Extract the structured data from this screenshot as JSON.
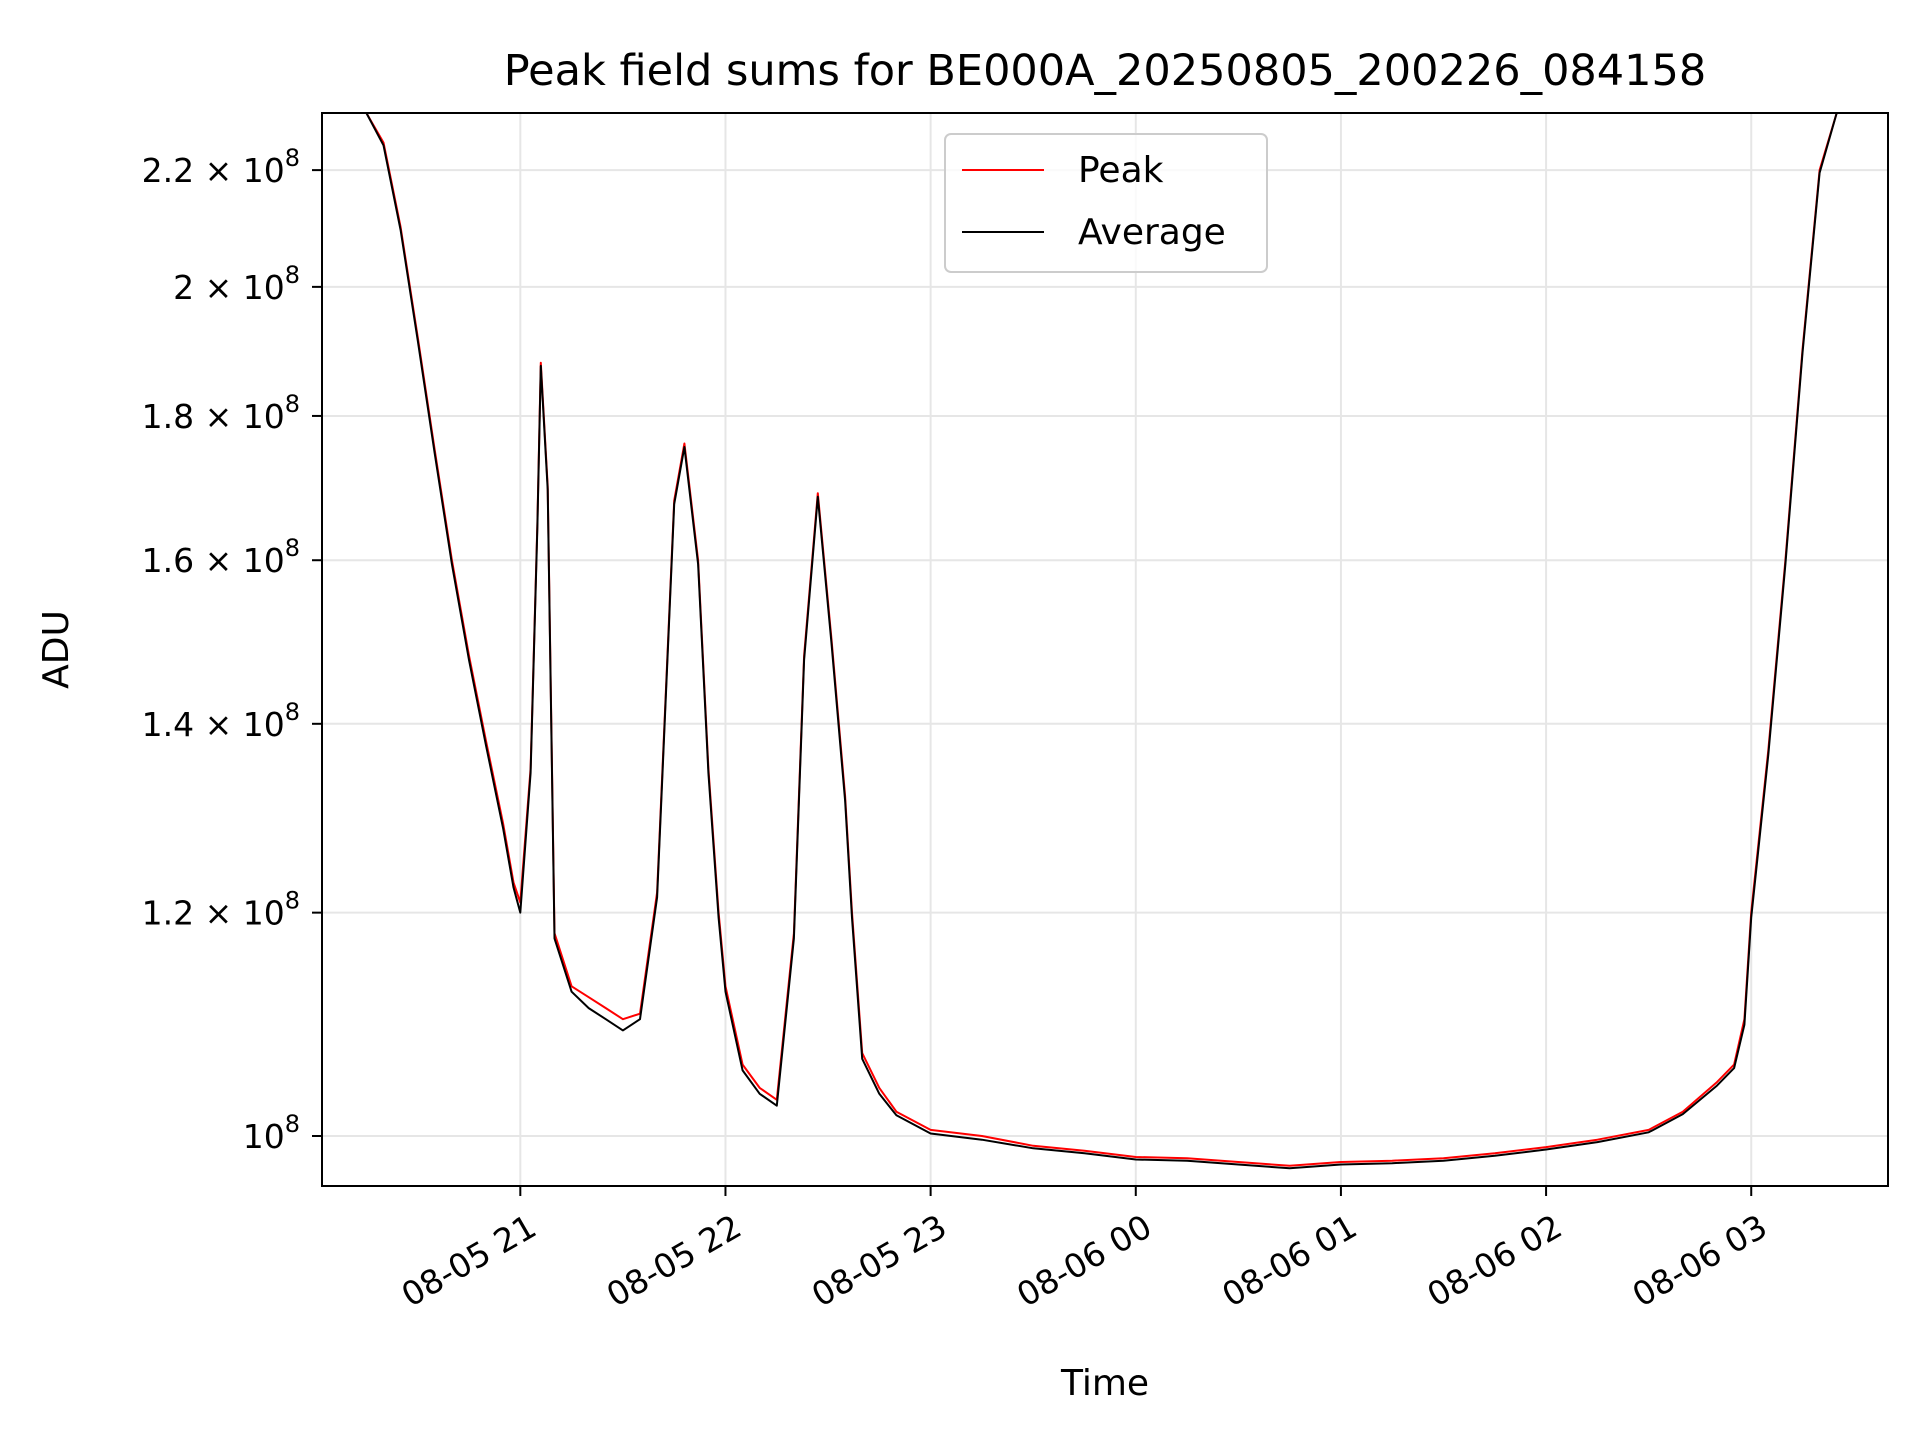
{
  "chart_data": {
    "type": "line",
    "title": "Peak field sums for BE000A_20250805_200226_084158",
    "xlabel": "Time",
    "ylabel": "ADU",
    "y_scale": "log",
    "grid": true,
    "legend_position": "top-center",
    "xlim": [
      "2025-08-05 20:02",
      "2025-08-06 03:40"
    ],
    "ylim": [
      96000000,
      230500000
    ],
    "x_ticks": [
      {
        "time": "2025-08-05 21:00",
        "label": "08-05 21"
      },
      {
        "time": "2025-08-05 22:00",
        "label": "08-05 22"
      },
      {
        "time": "2025-08-05 23:00",
        "label": "08-05 23"
      },
      {
        "time": "2025-08-06 00:00",
        "label": "08-06 00"
      },
      {
        "time": "2025-08-06 01:00",
        "label": "08-06 01"
      },
      {
        "time": "2025-08-06 02:00",
        "label": "08-06 02"
      },
      {
        "time": "2025-08-06 03:00",
        "label": "08-06 03"
      }
    ],
    "y_ticks": [
      {
        "value": 100000000,
        "label_mantissa": "",
        "label_exp": "8"
      },
      {
        "value": 120000000,
        "label_mantissa": "1.2",
        "label_exp": "8"
      },
      {
        "value": 140000000,
        "label_mantissa": "1.4",
        "label_exp": "8"
      },
      {
        "value": 160000000,
        "label_mantissa": "1.6",
        "label_exp": "8"
      },
      {
        "value": 180000000,
        "label_mantissa": "1.8",
        "label_exp": "8"
      },
      {
        "value": 200000000,
        "label_mantissa": "2",
        "label_exp": "8"
      },
      {
        "value": 220000000,
        "label_mantissa": "2.2",
        "label_exp": "8"
      }
    ],
    "series": [
      {
        "name": "Peak",
        "color": "#ff0000",
        "points": [
          [
            "2025-08-05 20:02",
            230500000
          ],
          [
            "2025-08-05 20:15",
            230500000
          ],
          [
            "2025-08-05 20:20",
            225000000
          ],
          [
            "2025-08-05 20:25",
            210000000
          ],
          [
            "2025-08-05 20:30",
            192000000
          ],
          [
            "2025-08-05 20:35",
            175000000
          ],
          [
            "2025-08-05 20:40",
            160000000
          ],
          [
            "2025-08-05 20:45",
            148000000
          ],
          [
            "2025-08-05 20:50",
            138000000
          ],
          [
            "2025-08-05 20:55",
            129000000
          ],
          [
            "2025-08-05 20:58",
            123000000
          ],
          [
            "2025-08-05 21:00",
            121000000
          ],
          [
            "2025-08-05 21:03",
            135000000
          ],
          [
            "2025-08-05 21:05",
            165000000
          ],
          [
            "2025-08-05 21:06",
            188000000
          ],
          [
            "2025-08-05 21:08",
            170000000
          ],
          [
            "2025-08-05 21:10",
            118000000
          ],
          [
            "2025-08-05 21:15",
            113000000
          ],
          [
            "2025-08-05 21:20",
            112000000
          ],
          [
            "2025-08-05 21:25",
            111000000
          ],
          [
            "2025-08-05 21:30",
            110000000
          ],
          [
            "2025-08-05 21:35",
            110500000
          ],
          [
            "2025-08-05 21:40",
            122000000
          ],
          [
            "2025-08-05 21:45",
            168000000
          ],
          [
            "2025-08-05 21:48",
            176000000
          ],
          [
            "2025-08-05 21:52",
            160000000
          ],
          [
            "2025-08-05 21:55",
            135000000
          ],
          [
            "2025-08-05 21:58",
            120000000
          ],
          [
            "2025-08-05 22:00",
            113000000
          ],
          [
            "2025-08-05 22:05",
            106000000
          ],
          [
            "2025-08-05 22:10",
            104000000
          ],
          [
            "2025-08-05 22:15",
            103000000
          ],
          [
            "2025-08-05 22:20",
            118000000
          ],
          [
            "2025-08-05 22:23",
            148000000
          ],
          [
            "2025-08-05 22:27",
            169000000
          ],
          [
            "2025-08-05 22:31",
            150000000
          ],
          [
            "2025-08-05 22:35",
            132000000
          ],
          [
            "2025-08-05 22:37",
            120000000
          ],
          [
            "2025-08-05 22:40",
            107000000
          ],
          [
            "2025-08-05 22:45",
            104000000
          ],
          [
            "2025-08-05 22:50",
            102000000
          ],
          [
            "2025-08-05 23:00",
            100500000
          ],
          [
            "2025-08-05 23:15",
            100000000
          ],
          [
            "2025-08-05 23:30",
            99200000
          ],
          [
            "2025-08-05 23:45",
            98800000
          ],
          [
            "2025-08-06 00:00",
            98300000
          ],
          [
            "2025-08-06 00:15",
            98200000
          ],
          [
            "2025-08-06 00:30",
            97900000
          ],
          [
            "2025-08-06 00:45",
            97600000
          ],
          [
            "2025-08-06 01:00",
            97900000
          ],
          [
            "2025-08-06 01:15",
            98000000
          ],
          [
            "2025-08-06 01:30",
            98200000
          ],
          [
            "2025-08-06 01:45",
            98600000
          ],
          [
            "2025-08-06 02:00",
            99100000
          ],
          [
            "2025-08-06 02:15",
            99700000
          ],
          [
            "2025-08-06 02:30",
            100500000
          ],
          [
            "2025-08-06 02:40",
            102000000
          ],
          [
            "2025-08-06 02:50",
            104500000
          ],
          [
            "2025-08-06 02:55",
            106000000
          ],
          [
            "2025-08-06 02:58",
            110000000
          ],
          [
            "2025-08-06 03:00",
            120000000
          ],
          [
            "2025-08-06 03:05",
            137000000
          ],
          [
            "2025-08-06 03:10",
            160000000
          ],
          [
            "2025-08-06 03:15",
            190000000
          ],
          [
            "2025-08-06 03:20",
            220000000
          ],
          [
            "2025-08-06 03:25",
            230500000
          ],
          [
            "2025-08-06 03:40",
            230500000
          ]
        ]
      },
      {
        "name": "Average",
        "color": "#000000",
        "points": [
          [
            "2025-08-05 20:02",
            230500000
          ],
          [
            "2025-08-05 20:15",
            230500000
          ],
          [
            "2025-08-05 20:20",
            224500000
          ],
          [
            "2025-08-05 20:25",
            209500000
          ],
          [
            "2025-08-05 20:30",
            191500000
          ],
          [
            "2025-08-05 20:35",
            174500000
          ],
          [
            "2025-08-05 20:40",
            159500000
          ],
          [
            "2025-08-05 20:45",
            147500000
          ],
          [
            "2025-08-05 20:50",
            137500000
          ],
          [
            "2025-08-05 20:55",
            128500000
          ],
          [
            "2025-08-05 20:58",
            122500000
          ],
          [
            "2025-08-05 21:00",
            120000000
          ],
          [
            "2025-08-05 21:03",
            134500000
          ],
          [
            "2025-08-05 21:05",
            164500000
          ],
          [
            "2025-08-05 21:06",
            187500000
          ],
          [
            "2025-08-05 21:08",
            169500000
          ],
          [
            "2025-08-05 21:10",
            117500000
          ],
          [
            "2025-08-05 21:15",
            112500000
          ],
          [
            "2025-08-05 21:20",
            111000000
          ],
          [
            "2025-08-05 21:25",
            110000000
          ],
          [
            "2025-08-05 21:30",
            109000000
          ],
          [
            "2025-08-05 21:35",
            110000000
          ],
          [
            "2025-08-05 21:40",
            121500000
          ],
          [
            "2025-08-05 21:45",
            167500000
          ],
          [
            "2025-08-05 21:48",
            175500000
          ],
          [
            "2025-08-05 21:52",
            159500000
          ],
          [
            "2025-08-05 21:55",
            134500000
          ],
          [
            "2025-08-05 21:58",
            119500000
          ],
          [
            "2025-08-05 22:00",
            112500000
          ],
          [
            "2025-08-05 22:05",
            105500000
          ],
          [
            "2025-08-05 22:10",
            103500000
          ],
          [
            "2025-08-05 22:15",
            102500000
          ],
          [
            "2025-08-05 22:20",
            117500000
          ],
          [
            "2025-08-05 22:23",
            147500000
          ],
          [
            "2025-08-05 22:27",
            168500000
          ],
          [
            "2025-08-05 22:31",
            149500000
          ],
          [
            "2025-08-05 22:35",
            131500000
          ],
          [
            "2025-08-05 22:37",
            119500000
          ],
          [
            "2025-08-05 22:40",
            106500000
          ],
          [
            "2025-08-05 22:45",
            103500000
          ],
          [
            "2025-08-05 22:50",
            101700000
          ],
          [
            "2025-08-05 23:00",
            100200000
          ],
          [
            "2025-08-05 23:15",
            99700000
          ],
          [
            "2025-08-05 23:30",
            99000000
          ],
          [
            "2025-08-05 23:45",
            98600000
          ],
          [
            "2025-08-06 00:00",
            98100000
          ],
          [
            "2025-08-06 00:15",
            98000000
          ],
          [
            "2025-08-06 00:30",
            97700000
          ],
          [
            "2025-08-06 00:45",
            97400000
          ],
          [
            "2025-08-06 01:00",
            97700000
          ],
          [
            "2025-08-06 01:15",
            97800000
          ],
          [
            "2025-08-06 01:30",
            98000000
          ],
          [
            "2025-08-06 01:45",
            98400000
          ],
          [
            "2025-08-06 02:00",
            98900000
          ],
          [
            "2025-08-06 02:15",
            99500000
          ],
          [
            "2025-08-06 02:30",
            100300000
          ],
          [
            "2025-08-06 02:40",
            101800000
          ],
          [
            "2025-08-06 02:50",
            104200000
          ],
          [
            "2025-08-06 02:55",
            105700000
          ],
          [
            "2025-08-06 02:58",
            109500000
          ],
          [
            "2025-08-06 03:00",
            119500000
          ],
          [
            "2025-08-06 03:05",
            136500000
          ],
          [
            "2025-08-06 03:10",
            159500000
          ],
          [
            "2025-08-06 03:15",
            189500000
          ],
          [
            "2025-08-06 03:20",
            219500000
          ],
          [
            "2025-08-06 03:25",
            230500000
          ],
          [
            "2025-08-06 03:40",
            230500000
          ]
        ]
      }
    ]
  }
}
